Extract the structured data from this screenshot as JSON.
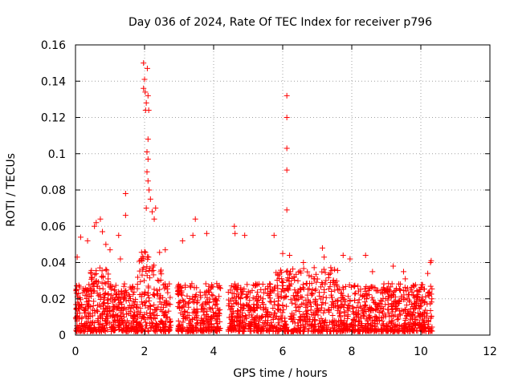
{
  "chart_data": {
    "type": "scatter",
    "title": "Day 036 of 2024, Rate Of TEC Index for receiver p796",
    "xlabel": "GPS time / hours",
    "ylabel": "ROTI / TECUs",
    "xlim": [
      0,
      12
    ],
    "ylim": [
      0,
      0.16
    ],
    "x_ticks": [
      0,
      2,
      4,
      6,
      8,
      10,
      12
    ],
    "x_tick_labels": [
      "0",
      "2",
      "4",
      "6",
      "8",
      "10",
      "12"
    ],
    "y_ticks": [
      0,
      0.02,
      0.04,
      0.06,
      0.08,
      0.1,
      0.12,
      0.14,
      0.16
    ],
    "y_tick_labels": [
      "0",
      "0.02",
      "0.04",
      "0.06",
      "0.08",
      "0.1",
      "0.12",
      "0.14",
      "0.16"
    ],
    "grid": true,
    "marker": "+",
    "color": "#ff0000",
    "series": [
      {
        "name": "ROTI",
        "points": [
          [
            1.97,
            0.15
          ],
          [
            2.08,
            0.147
          ],
          [
            2.0,
            0.141
          ],
          [
            1.97,
            0.136
          ],
          [
            2.02,
            0.134
          ],
          [
            2.05,
            0.128
          ],
          [
            2.1,
            0.132
          ],
          [
            2.03,
            0.124
          ],
          [
            2.12,
            0.124
          ],
          [
            2.1,
            0.108
          ],
          [
            2.07,
            0.101
          ],
          [
            2.1,
            0.097
          ],
          [
            2.07,
            0.09
          ],
          [
            2.1,
            0.085
          ],
          [
            2.13,
            0.08
          ],
          [
            2.17,
            0.075
          ],
          [
            2.05,
            0.07
          ],
          [
            2.22,
            0.068
          ],
          [
            2.32,
            0.07
          ],
          [
            2.28,
            0.064
          ],
          [
            1.45,
            0.078
          ],
          [
            1.45,
            0.066
          ],
          [
            6.12,
            0.132
          ],
          [
            6.12,
            0.12
          ],
          [
            6.12,
            0.103
          ],
          [
            6.12,
            0.091
          ],
          [
            6.12,
            0.069
          ],
          [
            3.47,
            0.064
          ],
          [
            0.72,
            0.064
          ],
          [
            0.6,
            0.062
          ],
          [
            0.55,
            0.06
          ],
          [
            0.78,
            0.057
          ],
          [
            4.6,
            0.06
          ],
          [
            4.62,
            0.056
          ],
          [
            5.75,
            0.055
          ],
          [
            4.9,
            0.055
          ],
          [
            3.4,
            0.055
          ],
          [
            3.8,
            0.056
          ],
          [
            2.6,
            0.047
          ],
          [
            3.1,
            0.052
          ],
          [
            1.25,
            0.055
          ],
          [
            0.35,
            0.052
          ],
          [
            0.15,
            0.054
          ],
          [
            0.05,
            0.043
          ],
          [
            0.88,
            0.05
          ],
          [
            1.0,
            0.047
          ],
          [
            1.3,
            0.042
          ],
          [
            6.0,
            0.045
          ],
          [
            6.2,
            0.044
          ],
          [
            6.6,
            0.04
          ],
          [
            7.15,
            0.048
          ],
          [
            7.2,
            0.043
          ],
          [
            7.75,
            0.044
          ],
          [
            7.95,
            0.042
          ],
          [
            8.4,
            0.044
          ],
          [
            8.6,
            0.035
          ],
          [
            9.2,
            0.038
          ],
          [
            9.5,
            0.035
          ],
          [
            9.55,
            0.031
          ],
          [
            9.8,
            0.027
          ],
          [
            10.2,
            0.034
          ],
          [
            10.3,
            0.041
          ],
          [
            10.28,
            0.04
          ],
          [
            10.24,
            0.022
          ],
          [
            10.32,
            0.02
          ]
        ]
      }
    ]
  }
}
